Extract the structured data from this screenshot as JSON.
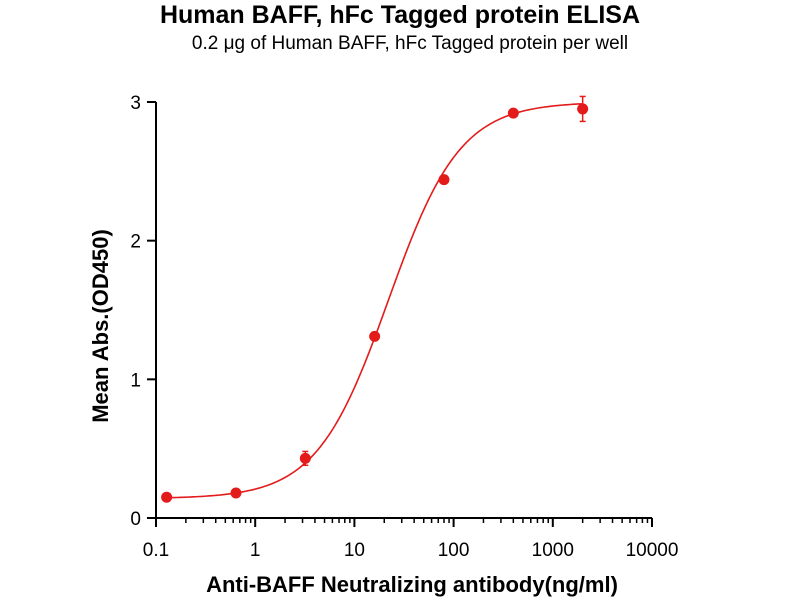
{
  "chart_data": {
    "type": "scatter",
    "title": "Human BAFF,  hFc Tagged protein ELISA",
    "subtitle": "0.2 μg of Human BAFF, hFc Tagged protein per well",
    "xlabel": "Anti-BAFF Neutralizing antibody(ng/ml)",
    "ylabel": "Mean Abs.(OD450)",
    "x_scale": "log10",
    "xlim": [
      0.1,
      10000
    ],
    "ylim": [
      0,
      3
    ],
    "x_ticks": [
      0.1,
      1,
      10,
      100,
      1000,
      10000
    ],
    "x_tick_labels": [
      "0.1",
      "1",
      "10",
      "100",
      "1000",
      "10000"
    ],
    "y_ticks": [
      0,
      1,
      2,
      3
    ],
    "y_tick_labels": [
      "0",
      "1",
      "2",
      "3"
    ],
    "series": [
      {
        "color": "#e31b1b",
        "points": [
          {
            "x": 0.128,
            "y": 0.15,
            "err": 0.01
          },
          {
            "x": 0.64,
            "y": 0.18,
            "err": 0.01
          },
          {
            "x": 3.2,
            "y": 0.43,
            "err": 0.05
          },
          {
            "x": 16,
            "y": 1.31,
            "err": 0.02
          },
          {
            "x": 80,
            "y": 2.44,
            "err": 0.02
          },
          {
            "x": 400,
            "y": 2.92,
            "err": 0.02
          },
          {
            "x": 2000,
            "y": 2.95,
            "err": 0.09
          }
        ],
        "fit": {
          "type": "4PL",
          "bottom": 0.14,
          "top": 3.0,
          "ec50": 22,
          "hill": 1.2
        }
      }
    ],
    "grid": false,
    "legend": "none"
  }
}
